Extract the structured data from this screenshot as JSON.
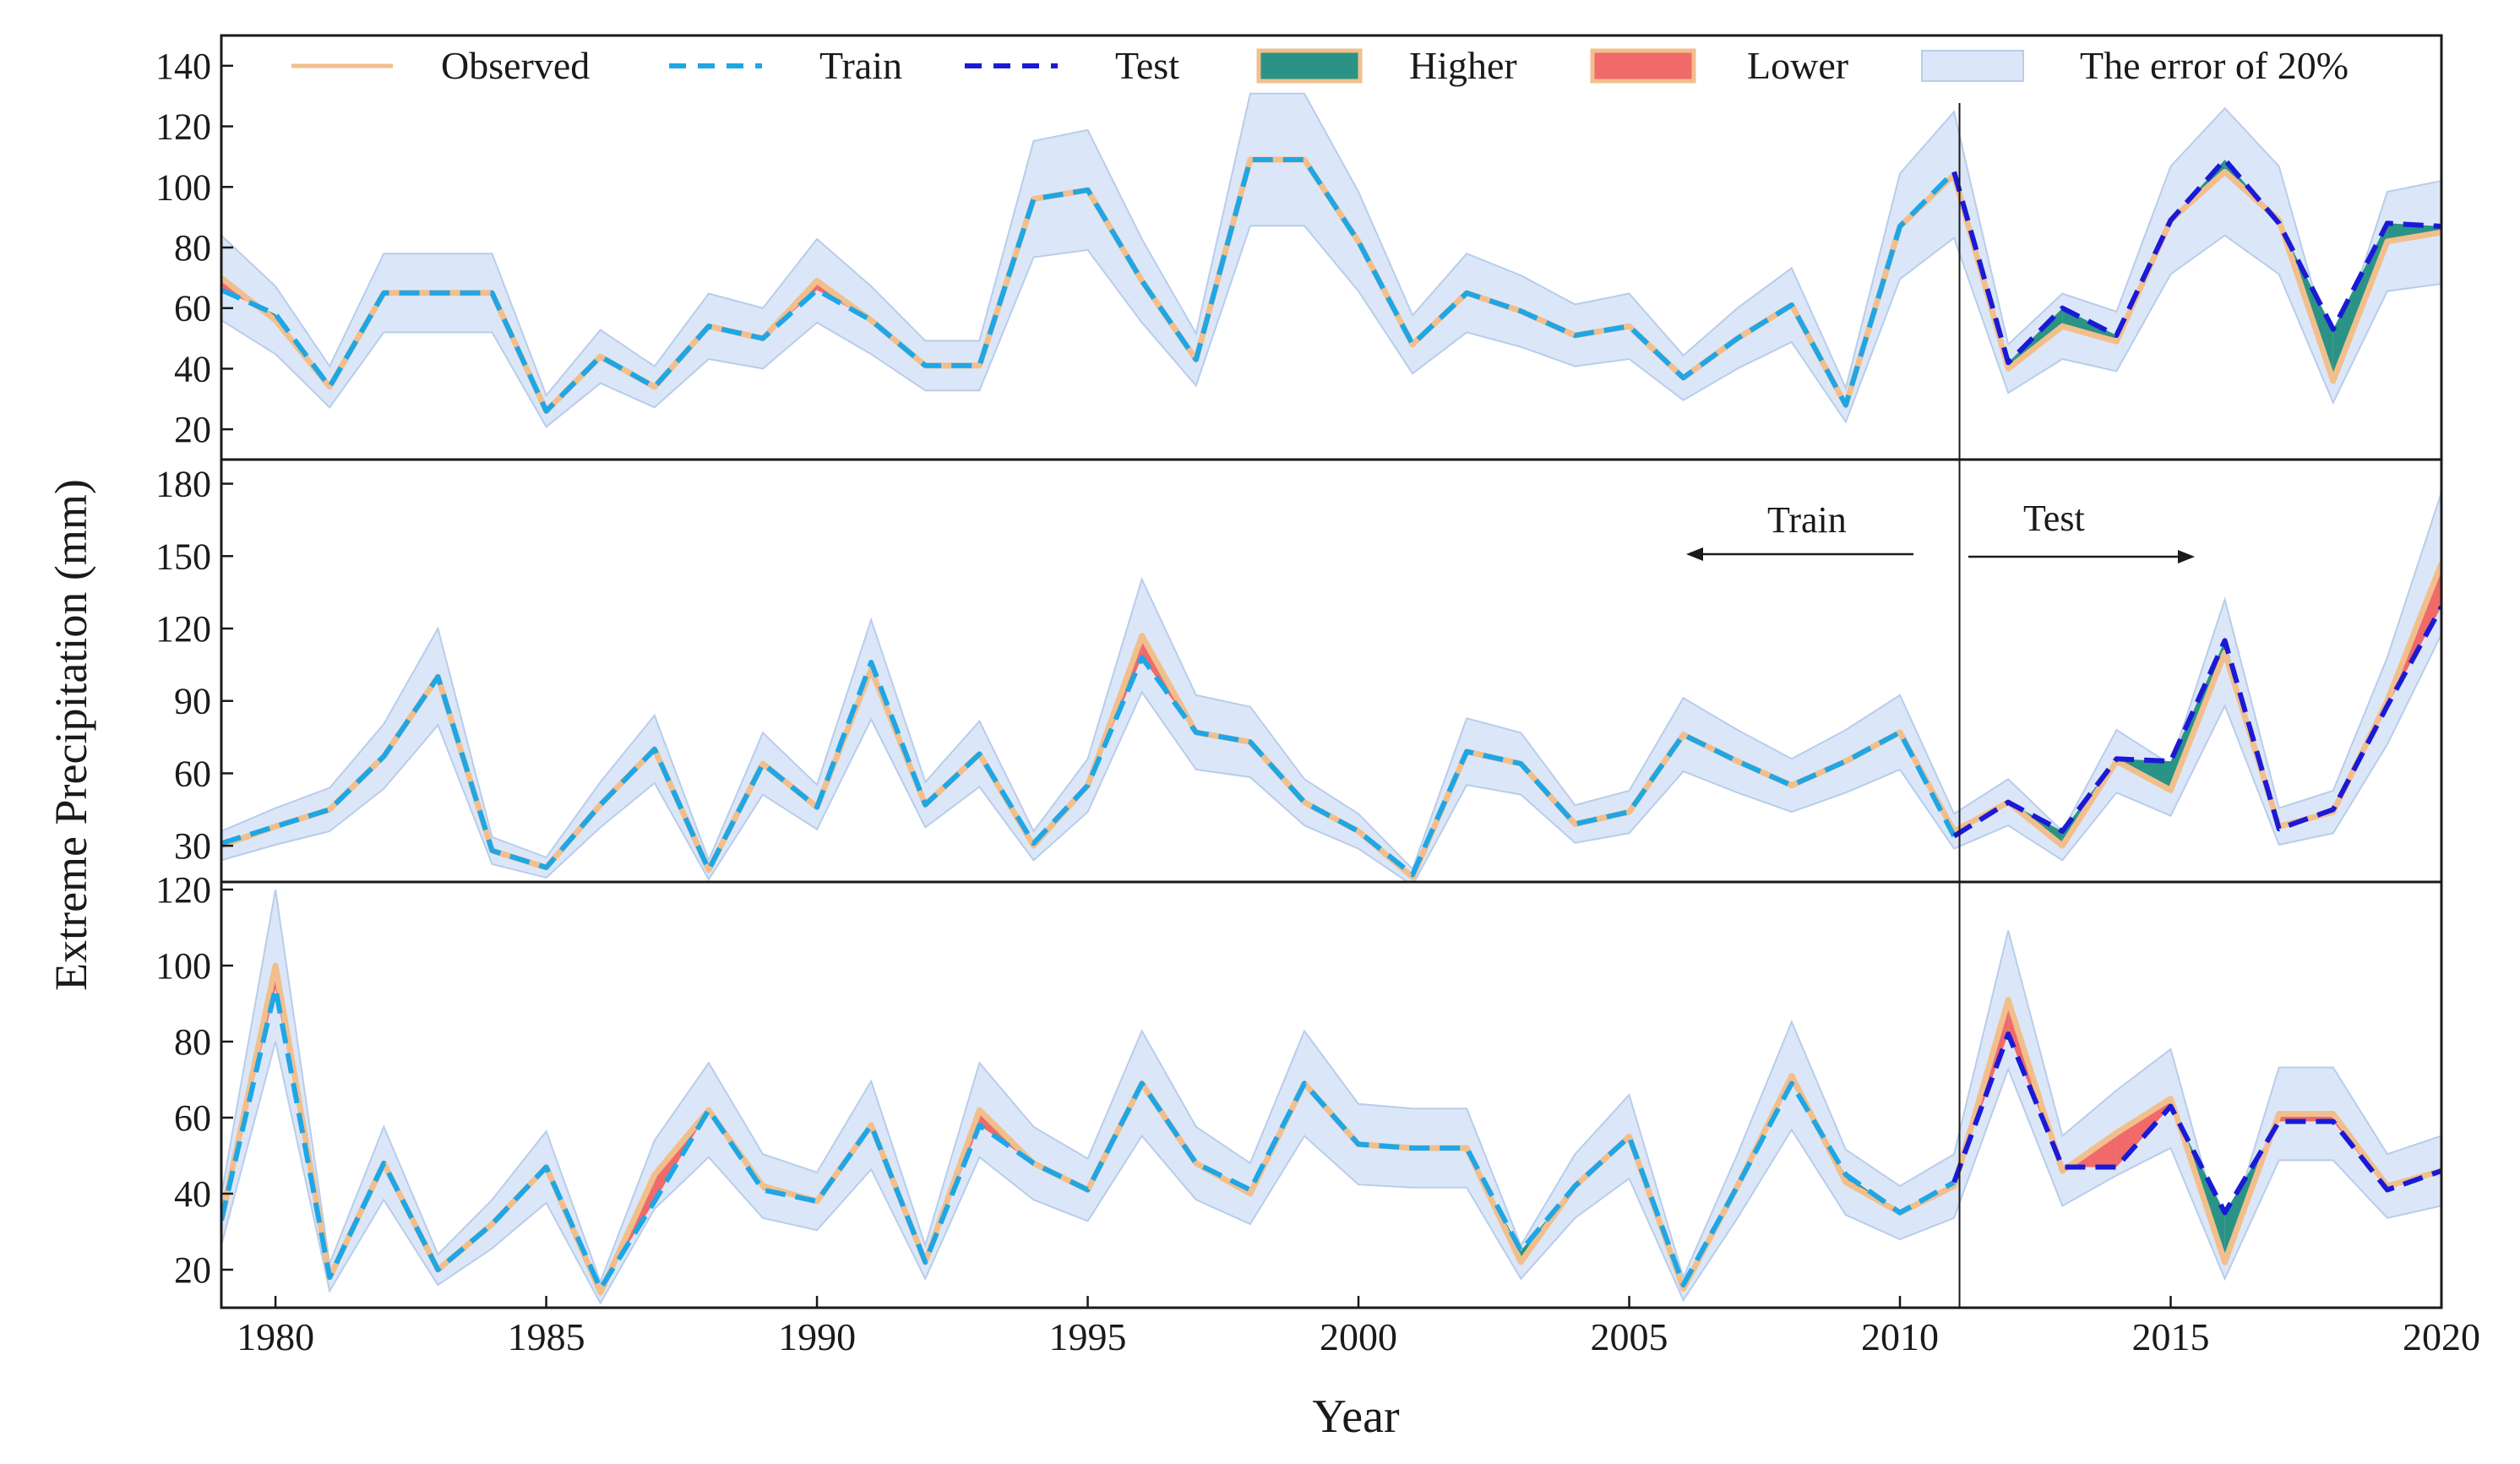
{
  "chart_data": {
    "type": "line",
    "ylabel": "Extreme Precipitation (mm)",
    "xlabel": "Year",
    "x_ticks": [
      1980,
      1985,
      1990,
      1995,
      2000,
      2005,
      2010,
      2015,
      2020
    ],
    "x_tick_labels": [
      "1980",
      "1985",
      "1990",
      "1995",
      "2000",
      "2005",
      "2010",
      "2015",
      "2020"
    ],
    "xlim": [
      1979,
      2020
    ],
    "split_year": 2011,
    "error_band": 0.2,
    "legend": {
      "observed": "Observed",
      "train": "Train",
      "test": "Test",
      "higher": "Higher",
      "lower": "Lower",
      "error": "The error of 20%"
    },
    "annotations": {
      "train_arrow": "Train",
      "test_arrow": "Test"
    },
    "colors": {
      "observed": "#f2bf8c",
      "train": "#1ea6e6",
      "test": "#1a1ad6",
      "higher": "#2a9385",
      "lower": "#f06a6a",
      "band": "#dbe7f8",
      "band_edge": "#b8cdea",
      "axis": "#1a1a1a"
    },
    "panels": [
      {
        "ylim": [
          10,
          150
        ],
        "yticks": [
          20,
          40,
          60,
          80,
          100,
          120,
          140
        ],
        "ytick_labels": [
          "20",
          "40",
          "60",
          "80",
          "100",
          "120",
          "140"
        ],
        "years": [
          1979,
          1980,
          1981,
          1982,
          1983,
          1984,
          1985,
          1986,
          1987,
          1988,
          1989,
          1990,
          1991,
          1992,
          1993,
          1994,
          1995,
          1996,
          1997,
          1998,
          1999,
          2000,
          2001,
          2002,
          2003,
          2004,
          2005,
          2006,
          2007,
          2008,
          2009,
          2010,
          2011,
          2012,
          2013,
          2014,
          2015,
          2016,
          2017,
          2018,
          2019,
          2020
        ],
        "observed": [
          70,
          56,
          34,
          65,
          65,
          65,
          26,
          44,
          34,
          54,
          50,
          69,
          56,
          41,
          41,
          96,
          99,
          69,
          43,
          109,
          109,
          82,
          48,
          65,
          59,
          51,
          54,
          37,
          50,
          61,
          28,
          87,
          104,
          40,
          54,
          49,
          89,
          105,
          89,
          36,
          82,
          85
        ],
        "predicted": [
          66,
          58,
          34,
          65,
          65,
          65,
          26,
          44,
          34,
          54,
          50,
          66,
          56,
          41,
          41,
          96,
          99,
          69,
          43,
          109,
          109,
          82,
          48,
          65,
          59,
          51,
          54,
          37,
          50,
          61,
          28,
          87,
          105,
          42,
          60,
          51,
          89,
          109,
          88,
          53,
          88,
          87
        ]
      },
      {
        "ylim": [
          15,
          190
        ],
        "yticks": [
          30,
          60,
          90,
          120,
          150,
          180
        ],
        "ytick_labels": [
          "30",
          "60",
          "90",
          "120",
          "150",
          "180"
        ],
        "years": [
          1979,
          1980,
          1981,
          1982,
          1983,
          1984,
          1985,
          1986,
          1987,
          1988,
          1989,
          1990,
          1991,
          1992,
          1993,
          1994,
          1995,
          1996,
          1997,
          1998,
          1999,
          2000,
          2001,
          2002,
          2003,
          2004,
          2005,
          2006,
          2007,
          2008,
          2009,
          2010,
          2011,
          2012,
          2013,
          2014,
          2015,
          2016,
          2017,
          2018,
          2019,
          2020
        ],
        "observed": [
          30,
          38,
          45,
          67,
          100,
          28,
          21,
          47,
          70,
          20,
          64,
          46,
          103,
          47,
          68,
          30,
          55,
          117,
          77,
          73,
          48,
          36,
          17,
          69,
          64,
          39,
          44,
          76,
          65,
          55,
          65,
          77,
          36,
          48,
          30,
          65,
          53,
          110,
          38,
          44,
          90,
          147
        ],
        "predicted": [
          31,
          38,
          45,
          67,
          100,
          28,
          21,
          47,
          70,
          20,
          64,
          46,
          106,
          47,
          68,
          31,
          55,
          108,
          77,
          73,
          48,
          36,
          18,
          69,
          64,
          39,
          44,
          76,
          65,
          55,
          65,
          77,
          34,
          48,
          36,
          66,
          65,
          115,
          37,
          45,
          88,
          129
        ]
      },
      {
        "ylim": [
          10,
          122
        ],
        "yticks": [
          20,
          40,
          60,
          80,
          100,
          120
        ],
        "ytick_labels": [
          "20",
          "40",
          "60",
          "80",
          "100",
          "120"
        ],
        "years": [
          1979,
          1980,
          1981,
          1982,
          1983,
          1984,
          1985,
          1986,
          1987,
          1988,
          1989,
          1990,
          1991,
          1992,
          1993,
          1994,
          1995,
          1996,
          1997,
          1998,
          1999,
          2000,
          2001,
          2002,
          2003,
          2004,
          2005,
          2006,
          2007,
          2008,
          2009,
          2010,
          2011,
          2012,
          2013,
          2014,
          2015,
          2016,
          2017,
          2018,
          2019,
          2020
        ],
        "observed": [
          33,
          100,
          18,
          48,
          20,
          32,
          47,
          14,
          45,
          62,
          42,
          38,
          58,
          22,
          62,
          48,
          41,
          69,
          48,
          40,
          69,
          53,
          52,
          52,
          22,
          42,
          55,
          15,
          42,
          71,
          43,
          35,
          42,
          91,
          46,
          56,
          65,
          22,
          61,
          61,
          42,
          46
        ],
        "predicted": [
          33,
          94,
          18,
          48,
          20,
          32,
          47,
          15,
          38,
          62,
          41,
          38,
          58,
          22,
          58,
          48,
          41,
          69,
          48,
          41,
          69,
          53,
          52,
          52,
          25,
          42,
          55,
          16,
          42,
          69,
          45,
          35,
          43,
          82,
          47,
          47,
          63,
          35,
          59,
          59,
          41,
          46
        ]
      }
    ]
  }
}
